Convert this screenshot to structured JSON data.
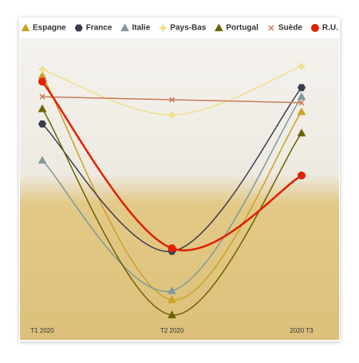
{
  "chart_data": {
    "type": "line",
    "categories": [
      "T1 2020",
      "T2 2020",
      "2020 T3"
    ],
    "ylim": [
      0,
      100
    ],
    "series": [
      {
        "name": "Espagne",
        "color": "#c9a227",
        "marker": "triangle",
        "values": [
          83,
          9,
          71
        ]
      },
      {
        "name": "France",
        "color": "#3b3b4f",
        "marker": "hexagon",
        "values": [
          67,
          25,
          79
        ]
      },
      {
        "name": "Italie",
        "color": "#7f9a9a",
        "marker": "triangle",
        "values": [
          55,
          12,
          76
        ]
      },
      {
        "name": "Pays-Bas",
        "color": "#f0e08a",
        "marker": "star",
        "values": [
          85,
          70,
          86
        ]
      },
      {
        "name": "Portugal",
        "color": "#6b6300",
        "marker": "triangle",
        "values": [
          72,
          4,
          64
        ]
      },
      {
        "name": "Suède",
        "color": "#c87a5a",
        "marker": "cross",
        "values": [
          76,
          75,
          74
        ]
      },
      {
        "name": "R.U.",
        "color": "#e02000",
        "marker": "circle",
        "values": [
          81,
          26,
          50
        ]
      }
    ]
  }
}
